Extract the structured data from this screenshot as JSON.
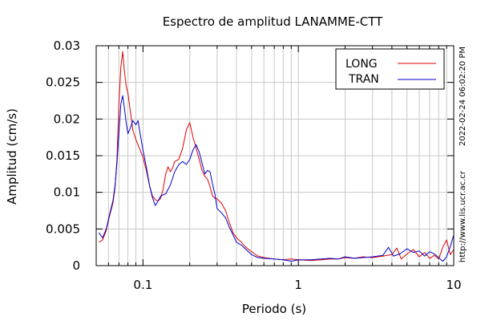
{
  "chart_data": {
    "type": "line",
    "title": "Espectro de amplitud LANAMME-CTT",
    "xlabel": "Periodo (s)",
    "ylabel": "Amplitud (cm/s)",
    "x_scale": "log",
    "xlim": [
      0.05,
      10
    ],
    "ylim": [
      0,
      0.03
    ],
    "x_ticks": [
      {
        "value": 0.1,
        "label": "0.1"
      },
      {
        "value": 1,
        "label": "1"
      },
      {
        "value": 10,
        "label": "10"
      }
    ],
    "y_ticks": [
      {
        "value": 0,
        "label": "0"
      },
      {
        "value": 0.005,
        "label": "0.005"
      },
      {
        "value": 0.01,
        "label": "0.01"
      },
      {
        "value": 0.015,
        "label": "0.015"
      },
      {
        "value": 0.02,
        "label": "0.02"
      },
      {
        "value": 0.025,
        "label": "0.025"
      },
      {
        "value": 0.03,
        "label": "0.03"
      }
    ],
    "grid": true,
    "legend_position": "top-right",
    "side_annotations": {
      "timestamp": "2022-02-24 06:02:20 PM",
      "url": "http://www.lis.ucr.ac.cr"
    },
    "series": [
      {
        "name": "LONG",
        "color": "#dd0000",
        "points": [
          [
            0.052,
            0.0032
          ],
          [
            0.055,
            0.0035
          ],
          [
            0.058,
            0.0048
          ],
          [
            0.061,
            0.0068
          ],
          [
            0.064,
            0.0085
          ],
          [
            0.066,
            0.0105
          ],
          [
            0.068,
            0.0145
          ],
          [
            0.07,
            0.022
          ],
          [
            0.072,
            0.027
          ],
          [
            0.074,
            0.0292
          ],
          [
            0.076,
            0.0265
          ],
          [
            0.078,
            0.0245
          ],
          [
            0.08,
            0.0235
          ],
          [
            0.083,
            0.021
          ],
          [
            0.086,
            0.0185
          ],
          [
            0.09,
            0.0172
          ],
          [
            0.095,
            0.016
          ],
          [
            0.1,
            0.0148
          ],
          [
            0.105,
            0.013
          ],
          [
            0.11,
            0.011
          ],
          [
            0.115,
            0.0095
          ],
          [
            0.12,
            0.009
          ],
          [
            0.125,
            0.0088
          ],
          [
            0.13,
            0.0092
          ],
          [
            0.135,
            0.0105
          ],
          [
            0.14,
            0.0125
          ],
          [
            0.145,
            0.0135
          ],
          [
            0.15,
            0.0128
          ],
          [
            0.155,
            0.0133
          ],
          [
            0.16,
            0.0142
          ],
          [
            0.17,
            0.0145
          ],
          [
            0.18,
            0.016
          ],
          [
            0.19,
            0.0185
          ],
          [
            0.2,
            0.0195
          ],
          [
            0.21,
            0.0175
          ],
          [
            0.22,
            0.016
          ],
          [
            0.23,
            0.0145
          ],
          [
            0.24,
            0.013
          ],
          [
            0.25,
            0.0122
          ],
          [
            0.26,
            0.0118
          ],
          [
            0.27,
            0.0108
          ],
          [
            0.28,
            0.0095
          ],
          [
            0.29,
            0.0092
          ],
          [
            0.3,
            0.0091
          ],
          [
            0.32,
            0.0085
          ],
          [
            0.34,
            0.0075
          ],
          [
            0.36,
            0.0058
          ],
          [
            0.38,
            0.0045
          ],
          [
            0.4,
            0.0038
          ],
          [
            0.43,
            0.0032
          ],
          [
            0.46,
            0.0025
          ],
          [
            0.5,
            0.0019
          ],
          [
            0.55,
            0.0013
          ],
          [
            0.6,
            0.0011
          ],
          [
            0.7,
            0.0009
          ],
          [
            0.8,
            0.0008
          ],
          [
            0.9,
            0.0009
          ],
          [
            1.0,
            0.0008
          ],
          [
            1.2,
            0.0007
          ],
          [
            1.4,
            0.0008
          ],
          [
            1.6,
            0.0009
          ],
          [
            1.8,
            0.0009
          ],
          [
            2.0,
            0.0011
          ],
          [
            2.3,
            0.001
          ],
          [
            2.6,
            0.0012
          ],
          [
            3.0,
            0.0011
          ],
          [
            3.5,
            0.0013
          ],
          [
            4.0,
            0.0015
          ],
          [
            4.3,
            0.0024
          ],
          [
            4.6,
            0.0009
          ],
          [
            5.0,
            0.0016
          ],
          [
            5.5,
            0.0022
          ],
          [
            6.0,
            0.0012
          ],
          [
            6.5,
            0.0018
          ],
          [
            7.0,
            0.001
          ],
          [
            7.5,
            0.0014
          ],
          [
            8.0,
            0.0009
          ],
          [
            8.5,
            0.0025
          ],
          [
            9.0,
            0.0035
          ],
          [
            9.5,
            0.0015
          ],
          [
            10.0,
            0.0022
          ]
        ]
      },
      {
        "name": "TRAN",
        "color": "#0000cc",
        "points": [
          [
            0.052,
            0.0045
          ],
          [
            0.055,
            0.0038
          ],
          [
            0.058,
            0.005
          ],
          [
            0.061,
            0.007
          ],
          [
            0.064,
            0.0088
          ],
          [
            0.066,
            0.0108
          ],
          [
            0.068,
            0.014
          ],
          [
            0.07,
            0.018
          ],
          [
            0.072,
            0.022
          ],
          [
            0.074,
            0.0232
          ],
          [
            0.076,
            0.0215
          ],
          [
            0.078,
            0.0195
          ],
          [
            0.08,
            0.018
          ],
          [
            0.083,
            0.0188
          ],
          [
            0.086,
            0.0198
          ],
          [
            0.088,
            0.0195
          ],
          [
            0.09,
            0.0192
          ],
          [
            0.093,
            0.0198
          ],
          [
            0.095,
            0.0185
          ],
          [
            0.1,
            0.0158
          ],
          [
            0.105,
            0.0135
          ],
          [
            0.11,
            0.011
          ],
          [
            0.115,
            0.0093
          ],
          [
            0.12,
            0.0082
          ],
          [
            0.125,
            0.0088
          ],
          [
            0.13,
            0.0095
          ],
          [
            0.14,
            0.0098
          ],
          [
            0.15,
            0.011
          ],
          [
            0.16,
            0.0128
          ],
          [
            0.17,
            0.0138
          ],
          [
            0.18,
            0.0142
          ],
          [
            0.19,
            0.0138
          ],
          [
            0.2,
            0.0145
          ],
          [
            0.21,
            0.0158
          ],
          [
            0.22,
            0.0165
          ],
          [
            0.23,
            0.0155
          ],
          [
            0.24,
            0.014
          ],
          [
            0.25,
            0.0125
          ],
          [
            0.26,
            0.013
          ],
          [
            0.27,
            0.0128
          ],
          [
            0.28,
            0.0112
          ],
          [
            0.29,
            0.0098
          ],
          [
            0.3,
            0.0078
          ],
          [
            0.32,
            0.0072
          ],
          [
            0.34,
            0.0065
          ],
          [
            0.36,
            0.0052
          ],
          [
            0.38,
            0.0042
          ],
          [
            0.4,
            0.0032
          ],
          [
            0.43,
            0.0028
          ],
          [
            0.46,
            0.0022
          ],
          [
            0.5,
            0.0015
          ],
          [
            0.55,
            0.0011
          ],
          [
            0.6,
            0.001
          ],
          [
            0.7,
            0.0009
          ],
          [
            0.8,
            0.0008
          ],
          [
            0.9,
            0.0006
          ],
          [
            1.0,
            0.0008
          ],
          [
            1.2,
            0.0008
          ],
          [
            1.4,
            0.0009
          ],
          [
            1.6,
            0.001
          ],
          [
            1.8,
            0.0009
          ],
          [
            2.0,
            0.0012
          ],
          [
            2.3,
            0.001
          ],
          [
            2.6,
            0.0011
          ],
          [
            3.0,
            0.0012
          ],
          [
            3.5,
            0.0014
          ],
          [
            3.8,
            0.0025
          ],
          [
            4.1,
            0.0013
          ],
          [
            4.5,
            0.0016
          ],
          [
            5.0,
            0.0023
          ],
          [
            5.5,
            0.0018
          ],
          [
            6.0,
            0.002
          ],
          [
            6.5,
            0.0013
          ],
          [
            7.0,
            0.0019
          ],
          [
            7.5,
            0.0016
          ],
          [
            8.0,
            0.0011
          ],
          [
            8.5,
            0.0006
          ],
          [
            9.0,
            0.0012
          ],
          [
            9.5,
            0.0026
          ],
          [
            10.0,
            0.0042
          ]
        ]
      }
    ]
  }
}
